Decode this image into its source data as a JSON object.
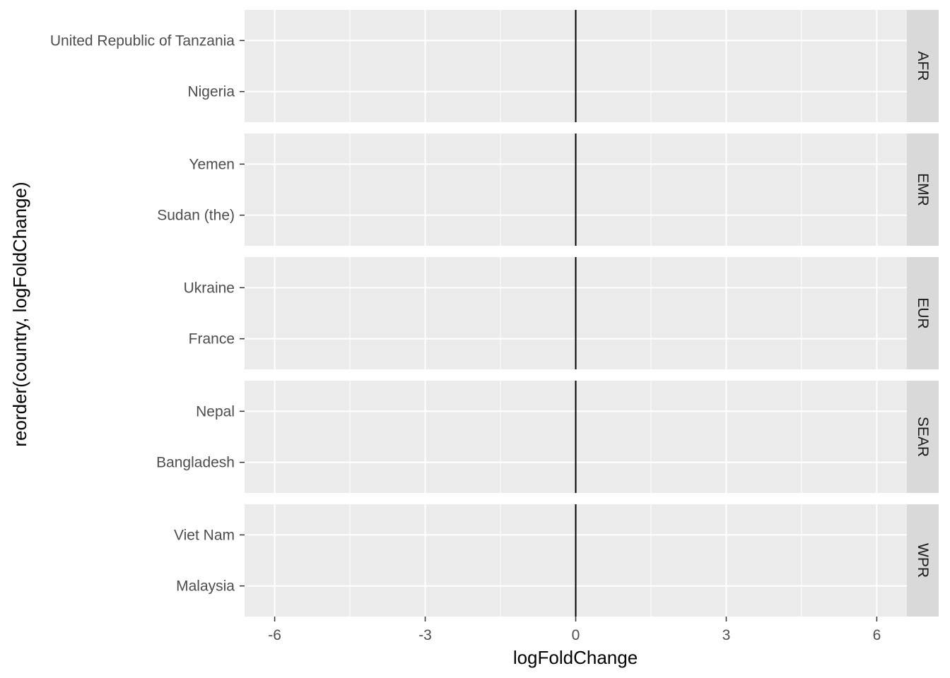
{
  "chart_data": {
    "type": "bar",
    "orientation": "horizontal",
    "xlabel": "logFoldChange",
    "ylabel": "reorder(country, logFoldChange)",
    "xlim": [
      -6.6,
      6.6
    ],
    "x_ticks": [
      -6,
      -3,
      0,
      3,
      6
    ],
    "x_tick_labels": [
      "-6",
      "-3",
      "0",
      "3",
      "6"
    ],
    "reference_line": 0,
    "grid": true,
    "facets": [
      {
        "label": "AFR",
        "categories": [
          "United Republic of Tanzania",
          "Nigeria"
        ],
        "values": [
          0,
          0
        ]
      },
      {
        "label": "EMR",
        "categories": [
          "Yemen",
          "Sudan (the)"
        ],
        "values": [
          0,
          0
        ]
      },
      {
        "label": "EUR",
        "categories": [
          "Ukraine",
          "France"
        ],
        "values": [
          0,
          0
        ]
      },
      {
        "label": "SEAR",
        "categories": [
          "Nepal",
          "Bangladesh"
        ],
        "values": [
          0,
          0
        ]
      },
      {
        "label": "WPR",
        "categories": [
          "Viet Nam",
          "Malaysia"
        ],
        "values": [
          0,
          0
        ]
      }
    ],
    "colors": {
      "panel_background": "#ebebeb",
      "grid_major": "#ffffff",
      "strip_background": "#d9d9d9",
      "reference_line": "#000000",
      "tick_text": "#4d4d4d"
    }
  }
}
